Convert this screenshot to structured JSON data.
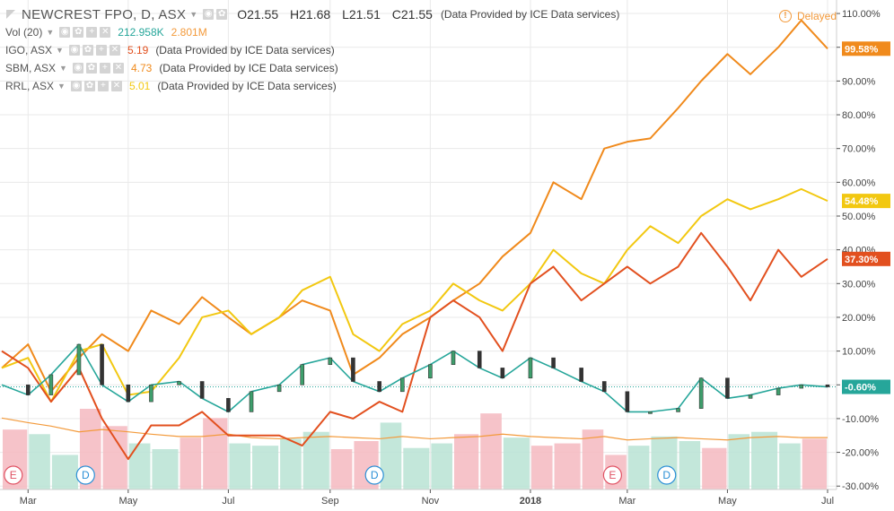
{
  "header": {
    "title": "NEWCREST FPO, D, ASX",
    "open": "O21.55",
    "high": "H21.68",
    "low": "L21.51",
    "close": "C21.55",
    "provider": "(Data Provided by ICE Data services)",
    "delayed": "Delayed",
    "delayed_icon": "!"
  },
  "studies": [
    {
      "label": "Vol (20)",
      "v1": "212.958K",
      "v2": "2.801M",
      "c1": "#26a69a",
      "c2": "#f39a3b",
      "note": ""
    },
    {
      "label": "IGO, ASX",
      "v1": "5.19",
      "c1": "#e2501f",
      "note": "(Data Provided by ICE Data services)"
    },
    {
      "label": "SBM, ASX",
      "v1": "4.73",
      "c1": "#f08a1c",
      "note": "(Data Provided by ICE Data services)"
    },
    {
      "label": "RRL, ASX",
      "v1": "5.01",
      "c1": "#f2c811",
      "note": "(Data Provided by ICE Data services)"
    }
  ],
  "icons": [
    "flag-icon",
    "eye-icon",
    "gear-icon",
    "plus-icon",
    "close-icon"
  ],
  "chart_data": {
    "type": "line",
    "x": [
      "2017-02-13",
      "2017-03-01",
      "2017-03-15",
      "2017-04-01",
      "2017-04-15",
      "2017-05-01",
      "2017-05-15",
      "2017-06-01",
      "2017-06-15",
      "2017-07-01",
      "2017-07-15",
      "2017-08-01",
      "2017-08-15",
      "2017-09-01",
      "2017-09-15",
      "2017-10-01",
      "2017-10-15",
      "2017-11-01",
      "2017-11-15",
      "2017-12-01",
      "2017-12-15",
      "2018-01-01",
      "2018-01-15",
      "2018-02-01",
      "2018-02-15",
      "2018-03-01",
      "2018-03-15",
      "2018-04-01",
      "2018-04-15",
      "2018-05-01",
      "2018-05-15",
      "2018-06-01",
      "2018-06-15",
      "2018-07-01"
    ],
    "x_tick_labels": [
      "Mar",
      "May",
      "Jul",
      "Sep",
      "Nov",
      "2018",
      "Mar",
      "May",
      "Jul"
    ],
    "x_tick_dates": [
      "2017-03-01",
      "2017-05-01",
      "2017-07-01",
      "2017-09-01",
      "2017-11-01",
      "2018-01-01",
      "2018-03-01",
      "2018-05-01",
      "2018-07-01"
    ],
    "y_unit": "%",
    "y_ticks": [
      110,
      100,
      90,
      80,
      70,
      60,
      50,
      40,
      30,
      20,
      10,
      0,
      -10,
      -20,
      -30
    ],
    "y_tick_labels": [
      "110.00%",
      "100.00%",
      "90.00%",
      "80.00%",
      "70.00%",
      "60.00%",
      "50.00%",
      "40.00%",
      "30.00%",
      "20.00%",
      "10.00%",
      "0.00%",
      "-10.00%",
      "-20.00%",
      "-30.00%"
    ],
    "ylim": [
      -31,
      114
    ],
    "grid": true,
    "series": [
      {
        "name": "SBM, ASX",
        "color": "#f08a1c",
        "last_label": "99.58%",
        "values": [
          5,
          12,
          -2,
          8,
          15,
          10,
          22,
          18,
          26,
          20,
          15,
          20,
          25,
          22,
          3,
          8,
          15,
          20,
          25,
          30,
          38,
          45,
          60,
          55,
          70,
          72,
          73,
          82,
          90,
          98,
          92,
          100,
          108,
          99.58
        ]
      },
      {
        "name": "RRL, ASX",
        "color": "#f2c811",
        "last_label": "54.48%",
        "values": [
          5,
          8,
          -5,
          10,
          12,
          -3,
          -2,
          8,
          20,
          22,
          15,
          20,
          28,
          32,
          15,
          10,
          18,
          22,
          30,
          25,
          22,
          30,
          40,
          33,
          30,
          40,
          47,
          42,
          50,
          55,
          52,
          55,
          58,
          54.48
        ]
      },
      {
        "name": "IGO, ASX",
        "color": "#e2501f",
        "last_label": "37.30%",
        "values": [
          10,
          5,
          -5,
          5,
          -10,
          -22,
          -12,
          -12,
          -8,
          -15,
          -15,
          -15,
          -18,
          -8,
          -10,
          -5,
          -8,
          20,
          25,
          20,
          10,
          30,
          35,
          25,
          30,
          35,
          30,
          35,
          45,
          35,
          25,
          40,
          32,
          37.3
        ]
      },
      {
        "name": "NEWCREST FPO, D, ASX",
        "color": "#26a69a",
        "last_label": "-0.60%",
        "values": [
          0,
          -3,
          3,
          12,
          0,
          -5,
          0,
          1,
          -4,
          -8,
          -2,
          0,
          6,
          8,
          1,
          -2,
          2,
          6,
          10,
          5,
          2,
          8,
          5,
          1,
          -2,
          -8,
          -8,
          -7,
          2,
          -4,
          -3,
          -1,
          0,
          -0.6
        ]
      }
    ],
    "volume": [
      60,
      52,
      48,
      30,
      70,
      55,
      40,
      35,
      45,
      62,
      40,
      38,
      44,
      50,
      35,
      42,
      58,
      36,
      40,
      48,
      66,
      45,
      38,
      40,
      52,
      30,
      38,
      46,
      42,
      36,
      48,
      50,
      40,
      44
    ],
    "volume_ma": [
      62,
      58,
      55,
      50,
      52,
      50,
      48,
      46,
      46,
      48,
      45,
      44,
      45,
      46,
      45,
      44,
      46,
      44,
      45,
      46,
      48,
      46,
      45,
      44,
      46,
      43,
      44,
      45,
      44,
      43,
      45,
      46,
      45,
      45
    ],
    "events": [
      {
        "date": "2017-02-20",
        "letter": "E",
        "color": "#e05263"
      },
      {
        "date": "2017-04-05",
        "letter": "D",
        "color": "#2a8fd6"
      },
      {
        "date": "2017-09-28",
        "letter": "D",
        "color": "#2a8fd6"
      },
      {
        "date": "2018-02-20",
        "letter": "E",
        "color": "#e05263"
      },
      {
        "date": "2018-03-25",
        "letter": "D",
        "color": "#2a8fd6"
      }
    ]
  }
}
